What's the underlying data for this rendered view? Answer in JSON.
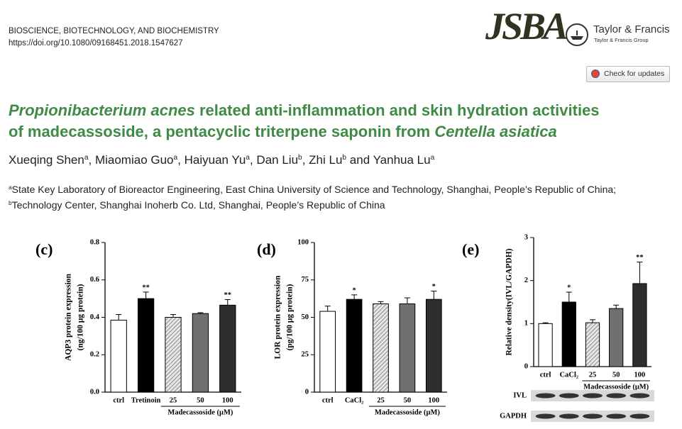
{
  "header": {
    "journal": "BIOSCIENCE, BIOTECHNOLOGY, AND BIOCHEMISTRY",
    "doi": "https://doi.org/10.1080/09168451.2018.1547627",
    "logo": "JSBA",
    "publisher": "Taylor & Francis",
    "publisher_group": "Taylor & Francis Group",
    "update_button": "Check for updates"
  },
  "title": [
    [
      {
        "text": "Propionibacterium acnes",
        "italic": true
      },
      {
        "text": " related anti-inflammation and skin hydration activities"
      }
    ],
    [
      {
        "text": "of madecassoside, a pentacyclic triterpene saponin from "
      },
      {
        "text": "Centella asiatica",
        "italic": true
      }
    ]
  ],
  "authors": [
    {
      "name": "Xueqing Shen",
      "aff": "a",
      "sep": ", "
    },
    {
      "name": "Miaomiao Guo",
      "aff": "a",
      "sep": ", "
    },
    {
      "name": "Haiyuan Yu",
      "aff": "a",
      "sep": ", "
    },
    {
      "name": "Dan Liu",
      "aff": "b",
      "sep": ", "
    },
    {
      "name": "Zhi Lu",
      "aff": "b",
      "sep": " and "
    },
    {
      "name": "Yanhua Lu",
      "aff": "a"
    }
  ],
  "affiliations": [
    {
      "mark": "a",
      "text": "State Key Laboratory of Bioreactor Engineering, East China University of Science and Technology, Shanghai, People’s Republic of China;"
    },
    {
      "mark": "b",
      "text": "Technology Center, Shanghai Inoherb Co. Ltd, Shanghai, People’s Republic of China"
    }
  ],
  "chart_data": [
    {
      "type": "bar",
      "panel": "(c)",
      "ylabel": [
        "AQP3 protein expression",
        "(ng/100 μg protein)"
      ],
      "categories": [
        "ctrl",
        "Tretinoin",
        "25",
        "50",
        "100"
      ],
      "values": [
        0.385,
        0.5,
        0.4,
        0.42,
        0.465
      ],
      "errors": [
        0.03,
        0.035,
        0.015,
        0.005,
        0.03
      ],
      "significance": [
        null,
        "**",
        null,
        null,
        "**"
      ],
      "colors": [
        "#ffffff",
        "#000000",
        "#d0d0d0",
        "#707070",
        "#2e2e2e"
      ],
      "hatched": [
        false,
        false,
        true,
        false,
        false
      ],
      "group_label": "Madecassoside (μM)",
      "ylim": [
        0,
        0.8
      ],
      "yticks": [
        {
          "value": 0,
          "label": "0.0"
        },
        0.2,
        0.4,
        0.6,
        0.8
      ]
    },
    {
      "type": "bar",
      "panel": "(d)",
      "ylabel": [
        "LOR protein expression",
        "(pg/100 μg protein)"
      ],
      "categories": [
        "ctrl",
        "CaCl₂",
        "25",
        "50",
        "100"
      ],
      "values": [
        54,
        62,
        59,
        59,
        62
      ],
      "errors": [
        3.5,
        3,
        1.5,
        4,
        5.5
      ],
      "significance": [
        null,
        "*",
        null,
        null,
        "*"
      ],
      "colors": [
        "#ffffff",
        "#000000",
        "#d0d0d0",
        "#707070",
        "#2e2e2e"
      ],
      "hatched": [
        false,
        false,
        true,
        false,
        false
      ],
      "group_label": "Madecassoside (μM)",
      "ylim": [
        0,
        100
      ],
      "yticks": [
        0,
        25,
        50,
        75,
        100
      ]
    },
    {
      "type": "bar",
      "panel": "(e)",
      "ylabel": "Relative density(IVL/GAPDH)",
      "categories": [
        "ctrl",
        "CaCl₂",
        "25",
        "50",
        "100"
      ],
      "values": [
        1.0,
        1.5,
        1.02,
        1.35,
        1.93
      ],
      "errors": [
        0.02,
        0.23,
        0.07,
        0.08,
        0.5
      ],
      "significance": [
        null,
        "*",
        null,
        null,
        "**"
      ],
      "colors": [
        "#ffffff",
        "#000000",
        "#d0d0d0",
        "#707070",
        "#2e2e2e"
      ],
      "hatched": [
        false,
        false,
        true,
        false,
        false
      ],
      "group_label": "Madecassoside (μM)",
      "ylim": [
        0,
        3
      ],
      "yticks": [
        0,
        1,
        2,
        3
      ],
      "blots": [
        "IVL",
        "GAPDH"
      ]
    }
  ]
}
